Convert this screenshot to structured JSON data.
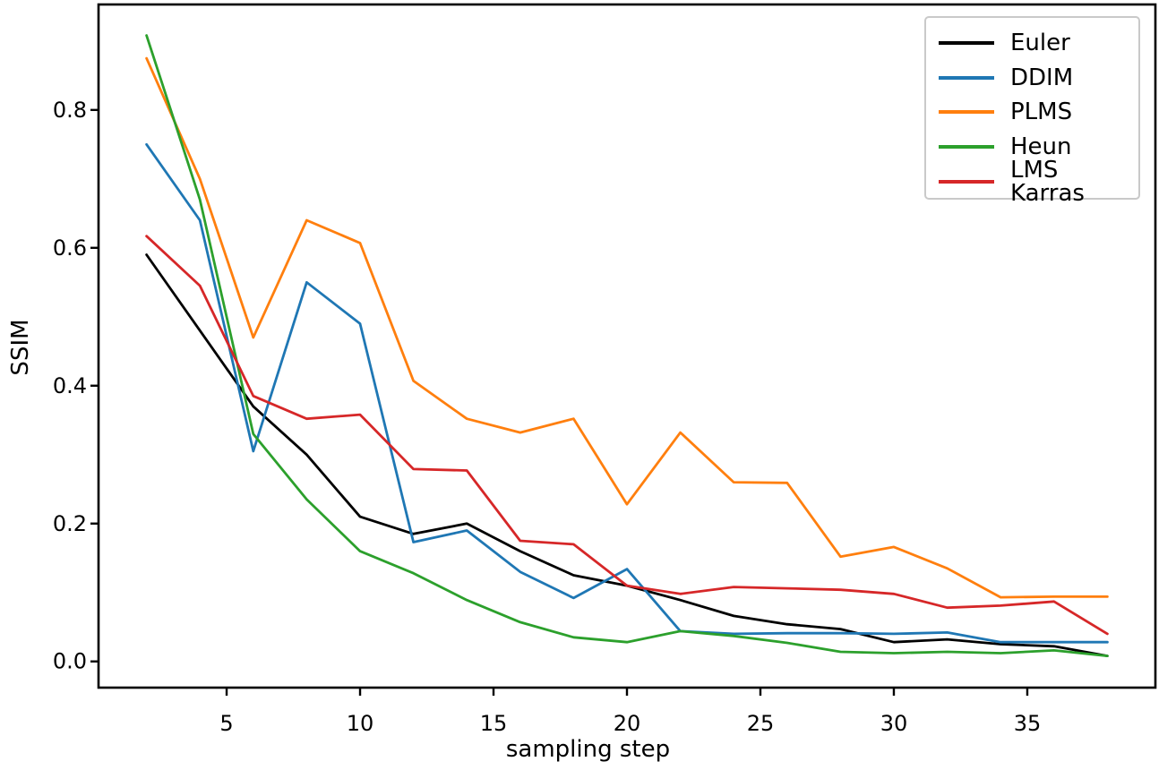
{
  "figure": {
    "background": "#ffffff",
    "axis_color": "#000000",
    "legend_border_color": "#c9c9c9"
  },
  "chart_data": {
    "type": "line",
    "title": "",
    "xlabel": "sampling step",
    "ylabel": "SSIM",
    "grid": false,
    "legend_position": "upper right",
    "xlim": [
      0.2,
      39.8
    ],
    "ylim": [
      -0.038,
      0.953
    ],
    "x_ticks": [
      5,
      10,
      15,
      20,
      25,
      30,
      35
    ],
    "y_ticks": [
      0.0,
      0.2,
      0.4,
      0.6,
      0.8
    ],
    "y_tick_labels": [
      "0.0",
      "0.2",
      "0.4",
      "0.6",
      "0.8"
    ],
    "x": [
      2,
      4,
      6,
      8,
      10,
      12,
      14,
      16,
      18,
      20,
      22,
      24,
      26,
      28,
      30,
      32,
      34,
      36,
      38
    ],
    "series": [
      {
        "name": "Euler",
        "color": "#000000",
        "values": [
          0.59,
          0.48,
          0.37,
          0.3,
          0.21,
          0.185,
          0.2,
          0.16,
          0.125,
          0.11,
          0.089,
          0.066,
          0.054,
          0.047,
          0.028,
          0.032,
          0.025,
          0.022,
          0.008
        ]
      },
      {
        "name": "DDIM",
        "color": "#1f77b4",
        "values": [
          0.75,
          0.64,
          0.305,
          0.55,
          0.49,
          0.173,
          0.19,
          0.13,
          0.092,
          0.134,
          0.044,
          0.04,
          0.041,
          0.041,
          0.04,
          0.042,
          0.028,
          0.028,
          0.028
        ]
      },
      {
        "name": "PLMS",
        "color": "#ff7f0e",
        "values": [
          0.875,
          0.7,
          0.47,
          0.64,
          0.607,
          0.407,
          0.352,
          0.332,
          0.352,
          0.228,
          0.332,
          0.26,
          0.259,
          0.152,
          0.166,
          0.135,
          0.093,
          0.094,
          0.094
        ]
      },
      {
        "name": "Heun",
        "color": "#2ca02c",
        "values": [
          0.908,
          0.67,
          0.33,
          0.235,
          0.16,
          0.128,
          0.089,
          0.057,
          0.035,
          0.028,
          0.044,
          0.037,
          0.027,
          0.014,
          0.012,
          0.014,
          0.012,
          0.016,
          0.008
        ]
      },
      {
        "name": "LMS Karras",
        "color": "#d62728",
        "values": [
          0.617,
          0.545,
          0.385,
          0.352,
          0.358,
          0.279,
          0.277,
          0.175,
          0.17,
          0.11,
          0.098,
          0.108,
          0.106,
          0.104,
          0.098,
          0.078,
          0.081,
          0.087,
          0.04
        ]
      }
    ]
  }
}
